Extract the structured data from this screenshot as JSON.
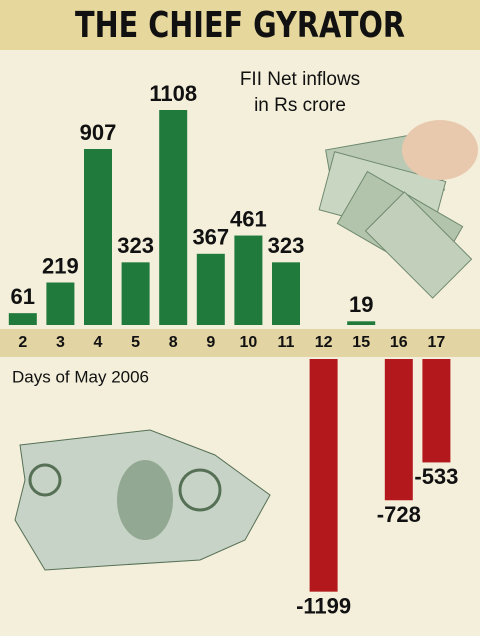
{
  "chart_data": {
    "type": "bar",
    "title": "THE CHIEF GYRATOR",
    "subtitle": [
      "FII Net inflows",
      "in Rs crore"
    ],
    "x_label": "Days of May 2006",
    "categories": [
      "2",
      "3",
      "4",
      "5",
      "8",
      "9",
      "10",
      "11",
      "12",
      "15",
      "16",
      "17"
    ],
    "values": [
      61,
      219,
      907,
      323,
      1108,
      367,
      461,
      323,
      -1199,
      19,
      -728,
      -533
    ],
    "color": "#1f7a3c",
    "negative_color": "#b3181c"
  }
}
